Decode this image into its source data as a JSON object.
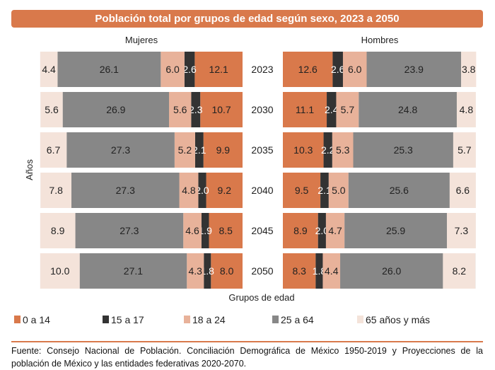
{
  "title": "Población total por grupos de edad según sexo, 2023 a 2050",
  "source": "Fuente: Consejo Nacional de Población. Conciliación Demográfica de México 1950-2019 y Proyecciones de la población de México y las entidades federativas 2020-2070.",
  "chart_data": {
    "type": "bar",
    "orientation": "horizontal-stacked-pyramid",
    "title": "Población total por grupos de edad según sexo, 2023 a 2050",
    "xlabel": "Grupos de edad",
    "ylabel": "Años",
    "categories": [
      "2023",
      "2030",
      "2035",
      "2040",
      "2045",
      "2050"
    ],
    "panels": [
      {
        "name": "Mujeres",
        "direction": "right-to-left"
      },
      {
        "name": "Hombres",
        "direction": "left-to-right"
      }
    ],
    "groups": [
      {
        "name": "0 a 14",
        "color": "#d9794b",
        "label_color": "#222"
      },
      {
        "name": "15 a 17",
        "color": "#333333",
        "label_color": "#fff"
      },
      {
        "name": "18 a 24",
        "color": "#e8b29a",
        "label_color": "#222"
      },
      {
        "name": "25 a 64",
        "color": "#878787",
        "label_color": "#222"
      },
      {
        "name": "65 años y más",
        "color": "#f4e3da",
        "label_color": "#222"
      }
    ],
    "mujeres": [
      [
        12.1,
        2.6,
        6.0,
        26.1,
        4.4
      ],
      [
        10.7,
        2.3,
        5.6,
        26.9,
        5.6
      ],
      [
        9.9,
        2.1,
        5.2,
        27.3,
        6.7
      ],
      [
        9.2,
        2.0,
        4.8,
        27.3,
        7.8
      ],
      [
        8.5,
        1.9,
        4.6,
        27.3,
        8.9
      ],
      [
        8.0,
        1.8,
        4.3,
        27.1,
        10.0
      ]
    ],
    "hombres": [
      [
        12.6,
        2.6,
        6.0,
        23.9,
        3.8
      ],
      [
        11.1,
        2.4,
        5.7,
        24.8,
        4.8
      ],
      [
        10.3,
        2.2,
        5.3,
        25.3,
        5.7
      ],
      [
        9.5,
        2.1,
        5.0,
        25.6,
        6.6
      ],
      [
        8.9,
        2.0,
        4.7,
        25.9,
        7.3
      ],
      [
        8.3,
        1.8,
        4.4,
        26.0,
        8.2
      ]
    ],
    "legend": "bottom",
    "grid": false
  }
}
